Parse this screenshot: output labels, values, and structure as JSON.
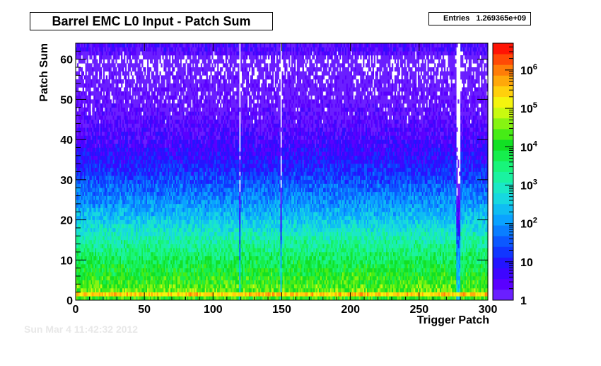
{
  "chart_data": {
    "type": "heatmap",
    "title": "Barrel EMC L0 Input - Patch Sum",
    "stats": {
      "label": "Entries",
      "value": "1.269365e+09"
    },
    "xlabel": "Trigger Patch",
    "ylabel": "Patch Sum",
    "xlim": [
      0,
      300
    ],
    "ylim": [
      0,
      64
    ],
    "x_ticks": [
      "0",
      "50",
      "100",
      "150",
      "200",
      "250",
      "300"
    ],
    "y_ticks": [
      "0",
      "10",
      "20",
      "30",
      "40",
      "50",
      "60"
    ],
    "z_scale": "log",
    "z_range": [
      1,
      5000000
    ],
    "z_ticks": [
      {
        "value": 1,
        "label": "1"
      },
      {
        "value": 10,
        "label": "10"
      },
      {
        "value": 100,
        "label": "10^2"
      },
      {
        "value": 1000,
        "label": "10^3"
      },
      {
        "value": 10000,
        "label": "10^4"
      },
      {
        "value": 100000,
        "label": "10^5"
      },
      {
        "value": 1000000,
        "label": "10^6"
      }
    ],
    "bins": {
      "x_count": 300,
      "y_count": 64
    },
    "profile": {
      "patch_sum": [
        0,
        1,
        2,
        5,
        10,
        15,
        20,
        25,
        30,
        35,
        40,
        45,
        50,
        55,
        60,
        62
      ],
      "typical_count": [
        100,
        3000000,
        30000,
        15000,
        5000,
        1500,
        300,
        80,
        25,
        8,
        4,
        2,
        1.3,
        1,
        0.6,
        3
      ]
    },
    "low_count_patches": [
      119,
      149,
      277,
      278,
      279
    ],
    "palette": [
      "#6a1fff",
      "#5a00ff",
      "#3e06ff",
      "#2414ff",
      "#1136ff",
      "#0c58ff",
      "#0a7eff",
      "#0aa2ff",
      "#0fbdf2",
      "#16d8e0",
      "#1ae8c6",
      "#1af2a0",
      "#18f47a",
      "#16ee4d",
      "#12e024",
      "#46ec16",
      "#86f412",
      "#c8fa10",
      "#f4f40e",
      "#ffd00c",
      "#ffa80a",
      "#ff7d08",
      "#ff4a06",
      "#ff1404"
    ]
  },
  "footer": {
    "date_text": "Sun Mar 4 11:42:32 2012"
  }
}
